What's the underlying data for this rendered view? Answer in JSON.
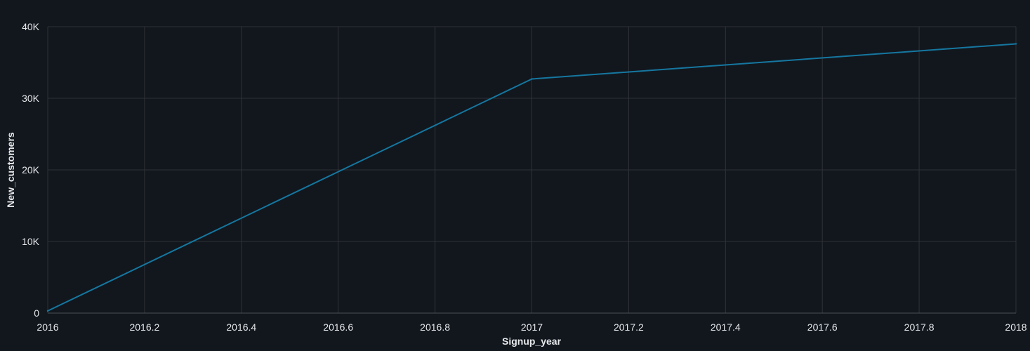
{
  "colors": {
    "background": "#12171e",
    "grid": "#2f3236",
    "text": "#e6e8ea",
    "series": "#1577a0"
  },
  "chart_data": {
    "type": "line",
    "title": "",
    "xlabel": "Signup_year",
    "ylabel": "New_customers",
    "xlim": [
      2016,
      2018
    ],
    "ylim": [
      0,
      40000
    ],
    "grid": true,
    "x_ticks": [
      {
        "value": 2016,
        "label": "2016"
      },
      {
        "value": 2016.2,
        "label": "2016.2"
      },
      {
        "value": 2016.4,
        "label": "2016.4"
      },
      {
        "value": 2016.6,
        "label": "2016.6"
      },
      {
        "value": 2016.8,
        "label": "2016.8"
      },
      {
        "value": 2017,
        "label": "2017"
      },
      {
        "value": 2017.2,
        "label": "2017.2"
      },
      {
        "value": 2017.4,
        "label": "2017.4"
      },
      {
        "value": 2017.6,
        "label": "2017.6"
      },
      {
        "value": 2017.8,
        "label": "2017.8"
      },
      {
        "value": 2018,
        "label": "2018"
      }
    ],
    "y_ticks": [
      {
        "value": 0,
        "label": "0"
      },
      {
        "value": 10000,
        "label": "10K"
      },
      {
        "value": 20000,
        "label": "20K"
      },
      {
        "value": 30000,
        "label": "30K"
      },
      {
        "value": 40000,
        "label": "40K"
      }
    ],
    "series": [
      {
        "x": [
          2016,
          2017,
          2018
        ],
        "y": [
          300,
          32700,
          37600
        ]
      }
    ]
  }
}
